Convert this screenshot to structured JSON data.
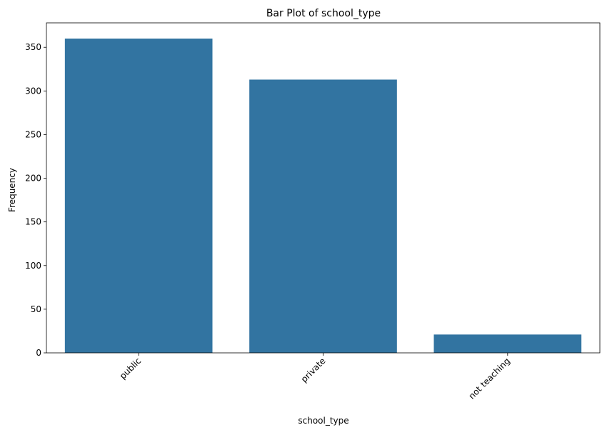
{
  "chart_data": {
    "type": "bar",
    "title": "Bar Plot of school_type",
    "xlabel": "school_type",
    "ylabel": "Frequency",
    "categories": [
      "public",
      "private",
      "not teaching"
    ],
    "values": [
      360,
      313,
      21
    ],
    "ylim": [
      0,
      378
    ],
    "yticks": [
      0,
      50,
      100,
      150,
      200,
      250,
      300,
      350
    ],
    "xtick_rotation_deg": 45,
    "grid": false,
    "legend": "none",
    "bar_color": "#3274a1"
  }
}
